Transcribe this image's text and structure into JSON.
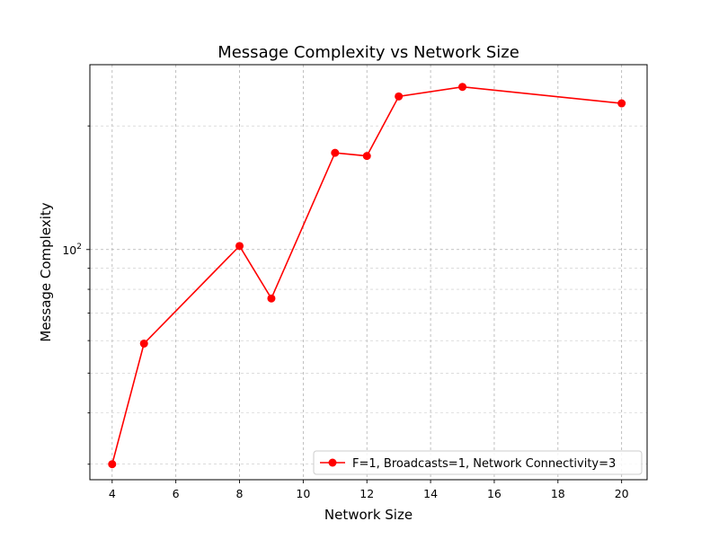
{
  "chart_data": {
    "type": "line",
    "title": "Message Complexity vs Network Size",
    "xlabel": "Network Size",
    "ylabel": "Message Complexity",
    "x": [
      4,
      5,
      8,
      9,
      11,
      12,
      13,
      15,
      20
    ],
    "series": [
      {
        "name": "F=1, Broadcasts=1, Network Connectivity=3",
        "color": "#ff0000",
        "marker": "circle",
        "values": [
          30,
          59,
          102,
          76,
          172,
          169,
          236,
          249,
          227
        ]
      }
    ],
    "xlim": [
      3.3,
      20.8
    ],
    "ylim": [
      27.5,
      282
    ],
    "yscale": "log",
    "xticks": [
      4,
      6,
      8,
      10,
      12,
      14,
      16,
      18,
      20
    ],
    "xtick_labels": [
      "4",
      "6",
      "8",
      "10",
      "12",
      "14",
      "16",
      "18",
      "20"
    ],
    "yticks_major": [
      100
    ],
    "ytick_major_base": "10",
    "ytick_major_exp": "2",
    "yticks_minor": [
      30,
      40,
      50,
      60,
      70,
      80,
      90,
      200
    ],
    "grid": true,
    "legend_loc": "lower right"
  }
}
